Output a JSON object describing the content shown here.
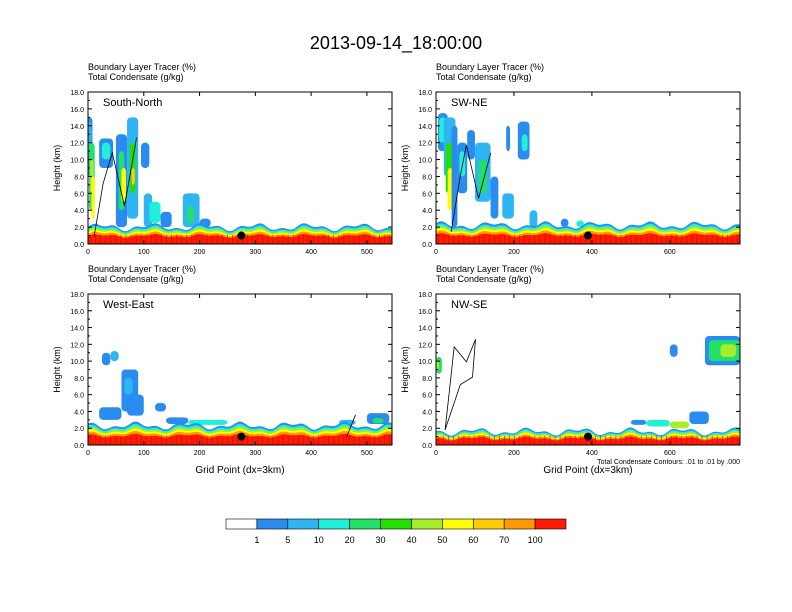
{
  "title": "2013-09-14_18:00:00",
  "colors": {
    "levels": [
      "#ffffff",
      "#2b8cf0",
      "#2fb6f2",
      "#20f0d8",
      "#22e06a",
      "#22e000",
      "#a6ee2a",
      "#ffff00",
      "#ffcc00",
      "#ff9900",
      "#ff5500",
      "#ff1a00"
    ],
    "contour": "#000000",
    "marker": "#000000"
  },
  "colorbar": {
    "labels": [
      "1",
      "5",
      "10",
      "20",
      "30",
      "40",
      "50",
      "60",
      "70",
      "100"
    ]
  },
  "chart_data": [
    {
      "type": "heatmap",
      "panel_label": "South-North",
      "subtitle_1": "Boundary Layer Tracer   (%)",
      "subtitle_2": "Total Condensate   (g/kg)",
      "ylabel": "Height (km)",
      "xlabel": "",
      "ylim": [
        0,
        18
      ],
      "xlim": [
        0,
        545
      ],
      "yticks": [
        "0.0",
        "2.0",
        "4.0",
        "6.0",
        "8.0",
        "10.0",
        "12.0",
        "14.0",
        "16.0",
        "18.0"
      ],
      "xticks": [
        0,
        100,
        200,
        300,
        400,
        500
      ],
      "marker": {
        "x": 275,
        "y": 1.0
      },
      "footnote": ""
    },
    {
      "type": "heatmap",
      "panel_label": "SW-NE",
      "subtitle_1": "Boundary Layer Tracer   (%)",
      "subtitle_2": "Total Condensate   (g/kg)",
      "ylabel": "Height (km)",
      "xlabel": "",
      "ylim": [
        0,
        18
      ],
      "xlim": [
        0,
        780
      ],
      "yticks": [
        "0.0",
        "2.0",
        "4.0",
        "6.0",
        "8.0",
        "10.0",
        "12.0",
        "14.0",
        "16.0",
        "18.0"
      ],
      "xticks": [
        0,
        200,
        400,
        600
      ],
      "marker": {
        "x": 390,
        "y": 1.0
      },
      "footnote": ""
    },
    {
      "type": "heatmap",
      "panel_label": "West-East",
      "subtitle_1": "Boundary Layer Tracer   (%)",
      "subtitle_2": "Total Condensate   (g/kg)",
      "ylabel": "Height (km)",
      "xlabel": "Grid Point (dx=3km)",
      "ylim": [
        0,
        18
      ],
      "xlim": [
        0,
        545
      ],
      "yticks": [
        "0.0",
        "2.0",
        "4.0",
        "6.0",
        "8.0",
        "10.0",
        "12.0",
        "14.0",
        "16.0",
        "18.0"
      ],
      "xticks": [
        0,
        100,
        200,
        300,
        400,
        500
      ],
      "marker": {
        "x": 275,
        "y": 1.0
      },
      "footnote": ""
    },
    {
      "type": "heatmap",
      "panel_label": "NW-SE",
      "subtitle_1": "Boundary Layer Tracer   (%)",
      "subtitle_2": "Total Condensate   (g/kg)",
      "ylabel": "Height (km)",
      "xlabel": "Grid Point (dx=3km)",
      "ylim": [
        0,
        18
      ],
      "xlim": [
        0,
        780
      ],
      "yticks": [
        "0.0",
        "2.0",
        "4.0",
        "6.0",
        "8.0",
        "10.0",
        "12.0",
        "14.0",
        "16.0",
        "18.0"
      ],
      "xticks": [
        0,
        200,
        400,
        600
      ],
      "marker": {
        "x": 390,
        "y": 1.0
      },
      "footnote": "Total Condensate Contours: .01 to .01 by .000"
    }
  ]
}
